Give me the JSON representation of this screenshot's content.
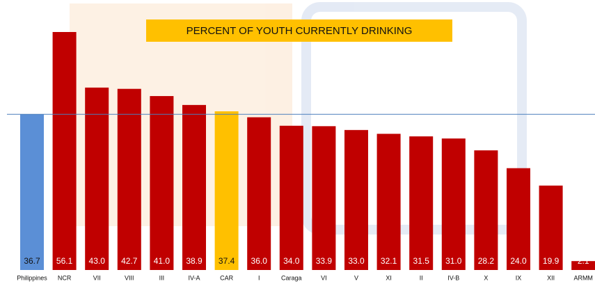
{
  "chart_data": {
    "type": "bar",
    "title": "PERCENT OF YOUTH CURRENTLY DRINKING",
    "categories": [
      "Philippines",
      "NCR",
      "VII",
      "VIII",
      "III",
      "IV-A",
      "CAR",
      "I",
      "Caraga",
      "VI",
      "V",
      "XI",
      "II",
      "IV-B",
      "X",
      "IX",
      "XII",
      "ARMM"
    ],
    "values": [
      36.7,
      56.1,
      43.0,
      42.7,
      41.0,
      38.9,
      37.4,
      36.0,
      34.0,
      33.9,
      33.0,
      32.1,
      31.5,
      31.0,
      28.2,
      24.0,
      19.9,
      2.1
    ],
    "value_labels": [
      "36.7",
      "56.1",
      "43.0",
      "42.7",
      "41.0",
      "38.9",
      "37.4",
      "36.0",
      "34.0",
      "33.9",
      "33.0",
      "32.1",
      "31.5",
      "31.0",
      "28.2",
      "24.0",
      "19.9",
      "2.1"
    ],
    "colors": [
      "#5b8fd6",
      "#c00000",
      "#c00000",
      "#c00000",
      "#c00000",
      "#c00000",
      "#ffc000",
      "#c00000",
      "#c00000",
      "#c00000",
      "#c00000",
      "#c00000",
      "#c00000",
      "#c00000",
      "#c00000",
      "#c00000",
      "#c00000",
      "#c00000"
    ]
  }
}
